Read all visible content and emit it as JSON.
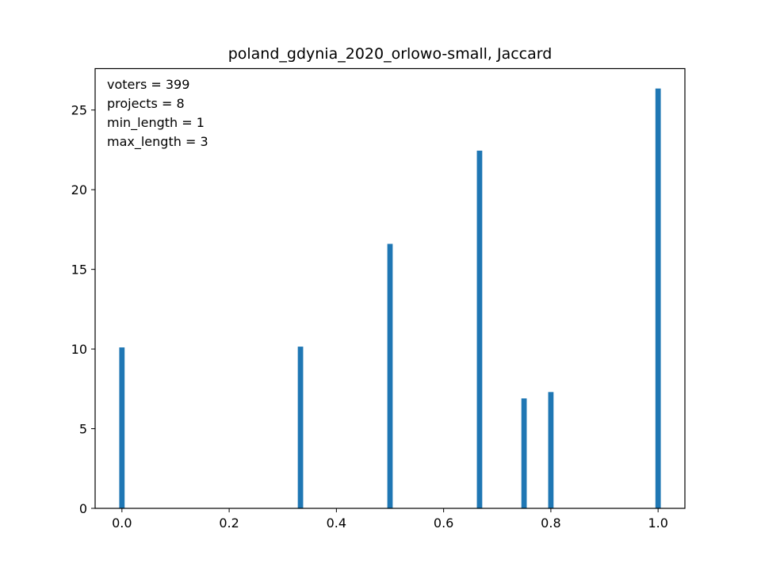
{
  "chart_data": {
    "type": "bar",
    "title": "poland_gdynia_2020_orlowo-small, Jaccard",
    "xlabel": "",
    "ylabel": "",
    "xlim": [
      -0.05,
      1.05
    ],
    "ylim": [
      0,
      27.6
    ],
    "x_ticks": [
      "0.0",
      "0.2",
      "0.4",
      "0.6",
      "0.8",
      "1.0"
    ],
    "y_ticks": [
      "0",
      "5",
      "10",
      "15",
      "20",
      "25"
    ],
    "grid": false,
    "bar_color": "#1f77b4",
    "bar_width": 0.01,
    "x": [
      0.0,
      0.333,
      0.5,
      0.667,
      0.75,
      0.8,
      1.0
    ],
    "values": [
      10.1,
      10.15,
      16.6,
      22.45,
      6.9,
      7.3,
      26.35
    ],
    "annotations": [
      "voters = 399",
      "projects = 8",
      "min_length = 1",
      "max_length = 3"
    ]
  }
}
